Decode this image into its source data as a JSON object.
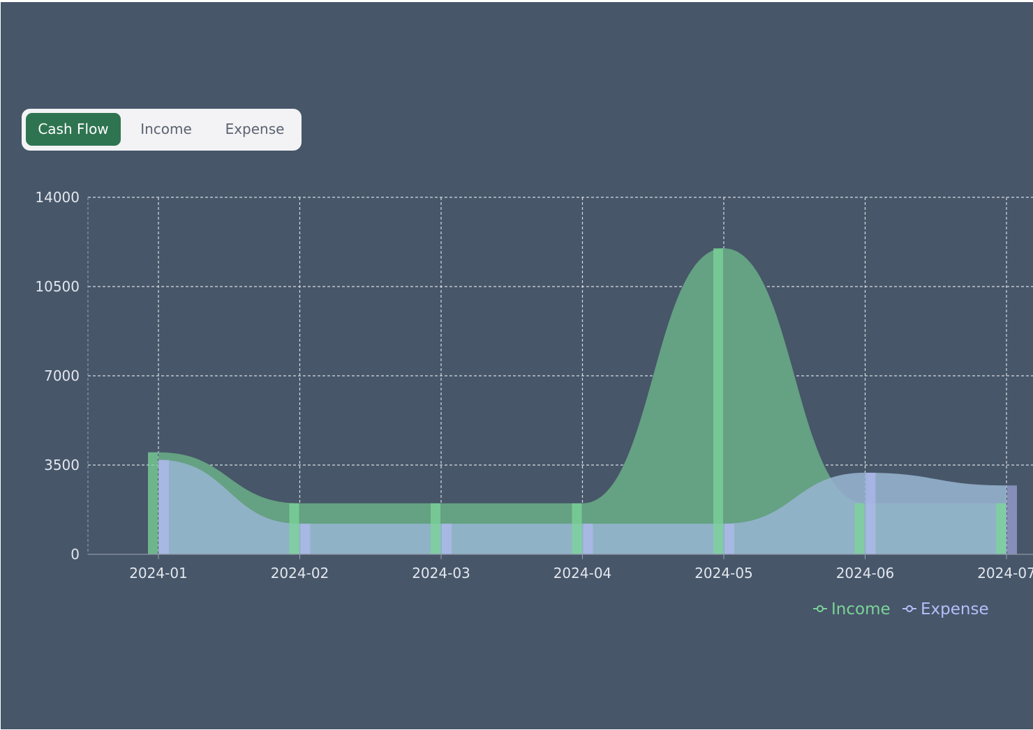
{
  "tabs": [
    {
      "label": "Cash Flow",
      "active": true
    },
    {
      "label": "Income",
      "active": false
    },
    {
      "label": "Expense",
      "active": false
    }
  ],
  "colors": {
    "background": "#475669",
    "income": "#7bd598",
    "income_fill": "#65a183",
    "expense": "#b9bdfb",
    "expense_fill": "#96b4cf",
    "tab_active": "#2f7451"
  },
  "chart_data": {
    "type": "area",
    "smooth": true,
    "grid": true,
    "legend_position": "bottom-right",
    "x": [
      "2024-01",
      "2024-02",
      "2024-03",
      "2024-04",
      "2024-05",
      "2024-06",
      "2024-07"
    ],
    "ylim": [
      0,
      14000
    ],
    "yticks": [
      0,
      3500,
      7000,
      10500,
      14000
    ],
    "series": [
      {
        "name": "Income",
        "values": [
          4000,
          2000,
          2000,
          2000,
          12000,
          2000,
          2000
        ]
      },
      {
        "name": "Expense",
        "values": [
          3700,
          1200,
          1200,
          1200,
          1200,
          3200,
          2700
        ]
      }
    ]
  }
}
